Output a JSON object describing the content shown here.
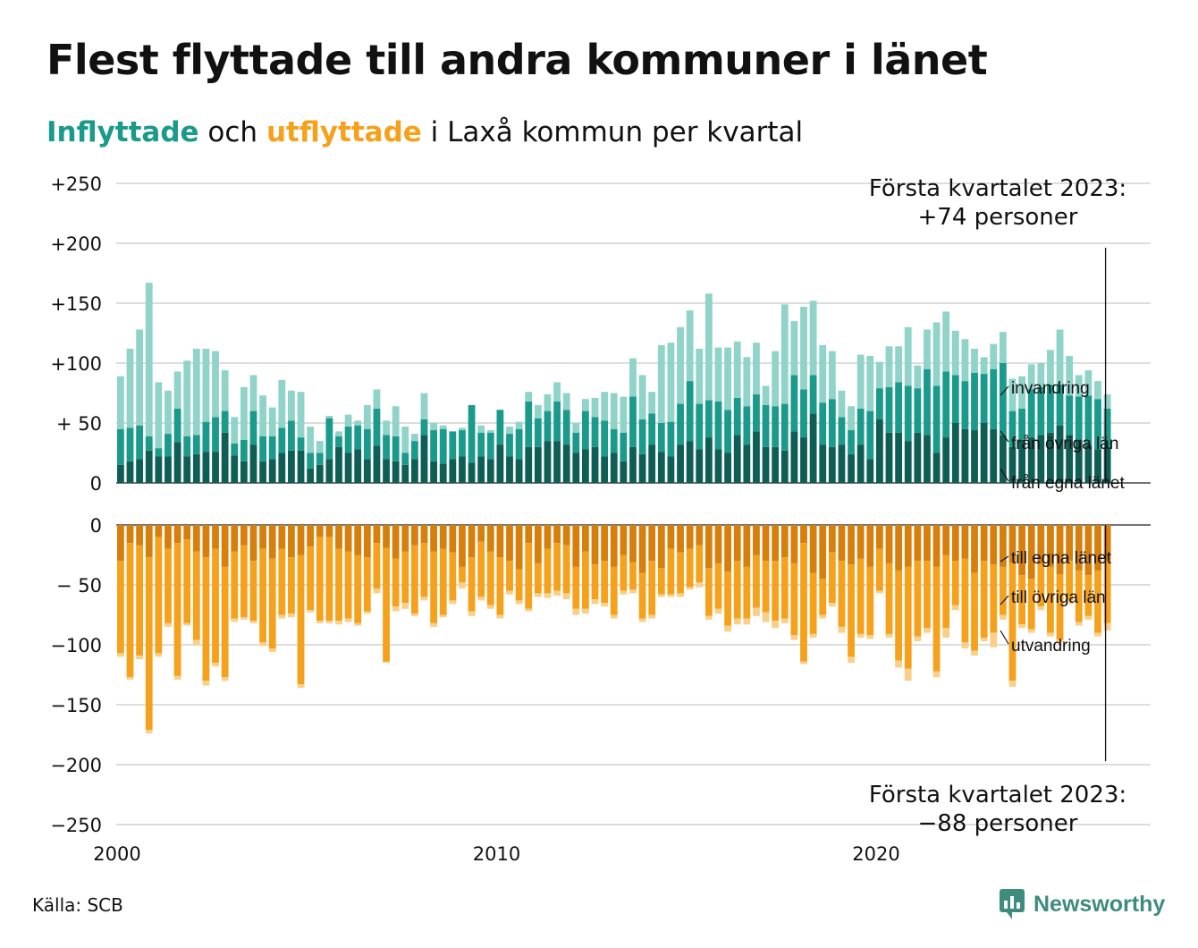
{
  "title": "Flest flyttade till andra kommuner i länet",
  "subtitle": {
    "part1": "Inflyttade",
    "part2": " och ",
    "part3": "utflyttade",
    "part4": " i Laxå kommun per kvartal"
  },
  "source": "Källa: SCB",
  "brand": {
    "name": "Newsworthy",
    "icon": "newsworthy-logo-icon"
  },
  "colors": {
    "in_egna": "#0f5e56",
    "in_ovriga": "#1a9a8b",
    "in_invandring": "#8fd3c9",
    "out_egna": "#d67f0c",
    "out_ovriga": "#f5a11c",
    "out_utvandring": "#f9d08a",
    "grid": "#dddddd"
  },
  "annotations": {
    "top": [
      "Första kvartalet 2023:",
      "+74 personer"
    ],
    "bottom": [
      "Första kvartalet 2023:",
      "−88 personer"
    ]
  },
  "segment_labels": {
    "in": [
      "invandring",
      "från övriga län",
      "från egna länet"
    ],
    "out": [
      "till egna länet",
      "till övriga län",
      "utvandring"
    ]
  },
  "chart_data": {
    "type": "bar",
    "stacked": true,
    "x_ticks": [
      "2000",
      "2010",
      "2020"
    ],
    "x_tick_values": [
      2000,
      2010,
      2020
    ],
    "x_start": 2000,
    "x_step": 0.25,
    "top_y_ticks": [
      {
        "value": 250,
        "label": "+250"
      },
      {
        "value": 200,
        "label": "+200"
      },
      {
        "value": 150,
        "label": "+150"
      },
      {
        "value": 100,
        "label": "+100"
      },
      {
        "value": 50,
        "label": "+ 50"
      },
      {
        "value": 0,
        "label": "0"
      }
    ],
    "bottom_y_ticks": [
      {
        "value": 0,
        "label": "0"
      },
      {
        "value": -50,
        "label": "− 50"
      },
      {
        "value": -100,
        "label": "−100"
      },
      {
        "value": -150,
        "label": "−150"
      },
      {
        "value": -200,
        "label": "−200"
      },
      {
        "value": -250,
        "label": "−250"
      }
    ],
    "top_ylim": [
      0,
      250
    ],
    "bottom_ylim": [
      -250,
      0
    ],
    "inflyttade": {
      "series_names": [
        "från egna länet",
        "från övriga län",
        "invandring"
      ],
      "egna": [
        15,
        18,
        20,
        27,
        22,
        22,
        34,
        22,
        24,
        26,
        26,
        42,
        23,
        18,
        32,
        18,
        20,
        25,
        27,
        27,
        12,
        15,
        20,
        30,
        25,
        28,
        20,
        31,
        20,
        18,
        15,
        20,
        40,
        18,
        16,
        20,
        22,
        17,
        22,
        20,
        32,
        22,
        20,
        30,
        30,
        35,
        35,
        32,
        25,
        28,
        30,
        22,
        25,
        18,
        30,
        24,
        32,
        26,
        22,
        32,
        35,
        28,
        38,
        28,
        25,
        40,
        32,
        43,
        30,
        30,
        27,
        43,
        38,
        58,
        32,
        30,
        32,
        24,
        32,
        20,
        53,
        42,
        42,
        35,
        42,
        40,
        25,
        38,
        50,
        45,
        44,
        50,
        45,
        40,
        30,
        36,
        38,
        40,
        42,
        48,
        40,
        36,
        32,
        28,
        30
      ],
      "ovriga": [
        30,
        28,
        28,
        12,
        7,
        19,
        28,
        17,
        16,
        25,
        29,
        18,
        10,
        18,
        28,
        21,
        19,
        21,
        25,
        11,
        13,
        10,
        34,
        9,
        22,
        20,
        25,
        31,
        20,
        21,
        10,
        15,
        13,
        26,
        29,
        23,
        22,
        48,
        20,
        22,
        29,
        19,
        25,
        38,
        24,
        25,
        33,
        29,
        17,
        32,
        25,
        30,
        20,
        24,
        42,
        29,
        26,
        24,
        29,
        34,
        50,
        38,
        31,
        40,
        36,
        31,
        32,
        31,
        35,
        34,
        39,
        47,
        40,
        32,
        35,
        40,
        23,
        20,
        30,
        40,
        26,
        38,
        42,
        46,
        37,
        55,
        56,
        55,
        40,
        40,
        48,
        41,
        50,
        60,
        30,
        26,
        40,
        40,
        40,
        34,
        33,
        36,
        41,
        42,
        32
      ],
      "invandring": [
        44,
        66,
        80,
        128,
        55,
        36,
        31,
        63,
        72,
        61,
        55,
        34,
        22,
        44,
        30,
        34,
        24,
        40,
        25,
        38,
        22,
        10,
        2,
        4,
        10,
        4,
        20,
        16,
        12,
        25,
        22,
        6,
        22,
        6,
        3,
        0,
        2,
        0,
        6,
        2,
        0,
        6,
        6,
        8,
        11,
        14,
        16,
        14,
        8,
        10,
        16,
        24,
        30,
        30,
        32,
        37,
        18,
        65,
        66,
        64,
        59,
        46,
        89,
        45,
        52,
        47,
        41,
        43,
        16,
        46,
        83,
        45,
        69,
        62,
        48,
        40,
        22,
        20,
        45,
        46,
        22,
        34,
        30,
        49,
        19,
        33,
        53,
        50,
        37,
        35,
        20,
        14,
        21,
        26,
        27,
        27,
        21,
        20,
        29,
        46,
        33,
        18,
        21,
        15,
        12
      ]
    },
    "utflyttade": {
      "series_names": [
        "till egna länet",
        "till övriga län",
        "utvandring"
      ],
      "egna": [
        -30,
        -15,
        -17,
        -27,
        -10,
        -20,
        -15,
        -12,
        -22,
        -27,
        -20,
        -35,
        -22,
        -17,
        -30,
        -20,
        -28,
        -20,
        -27,
        -25,
        -18,
        -10,
        -10,
        -20,
        -22,
        -25,
        -27,
        -15,
        -19,
        -28,
        -22,
        -17,
        -15,
        -22,
        -20,
        -23,
        -35,
        -27,
        -14,
        -22,
        -27,
        -30,
        -37,
        -15,
        -32,
        -20,
        -15,
        -17,
        -35,
        -22,
        -33,
        -30,
        -35,
        -25,
        -31,
        -40,
        -30,
        -36,
        -20,
        -23,
        -20,
        -17,
        -36,
        -32,
        -39,
        -30,
        -35,
        -25,
        -30,
        -30,
        -27,
        -32,
        -15,
        -40,
        -45,
        -23,
        -30,
        -33,
        -28,
        -35,
        -20,
        -32,
        -38,
        -35,
        -30,
        -30,
        -35,
        -25,
        -30,
        -28,
        -40,
        -30,
        -33,
        -35,
        -32,
        -42,
        -45,
        -33,
        -35,
        -41,
        -30,
        -38,
        -42,
        -38,
        -30
      ],
      "ovriga": [
        -77,
        -112,
        -92,
        -144,
        -97,
        -62,
        -111,
        -70,
        -74,
        -103,
        -95,
        -92,
        -56,
        -60,
        -50,
        -78,
        -75,
        -55,
        -47,
        -108,
        -53,
        -70,
        -70,
        -60,
        -56,
        -57,
        -45,
        -38,
        -95,
        -40,
        -43,
        -57,
        -45,
        -60,
        -55,
        -40,
        -13,
        -45,
        -46,
        -45,
        -48,
        -25,
        -26,
        -55,
        -25,
        -37,
        -40,
        -40,
        -35,
        -48,
        -29,
        -35,
        -40,
        -30,
        -23,
        -38,
        -45,
        -22,
        -38,
        -34,
        -32,
        -31,
        -40,
        -38,
        -45,
        -48,
        -43,
        -44,
        -43,
        -50,
        -51,
        -60,
        -99,
        -51,
        -30,
        -42,
        -55,
        -77,
        -63,
        -57,
        -35,
        -59,
        -75,
        -85,
        -63,
        -56,
        -87,
        -61,
        -37,
        -70,
        -65,
        -64,
        -57,
        -40,
        -98,
        -41,
        -42,
        -35,
        -55,
        -55,
        -33,
        -43,
        -34,
        -52,
        -52
      ],
      "utvandring": [
        -3,
        -2,
        -3,
        -3,
        -3,
        -3,
        -3,
        -2,
        -4,
        -4,
        -3,
        -3,
        -3,
        -2,
        -2,
        -3,
        -3,
        -3,
        -3,
        -3,
        -2,
        -2,
        -2,
        -3,
        -3,
        -2,
        -2,
        -4,
        -1,
        -4,
        -5,
        -2,
        -3,
        -3,
        -2,
        -3,
        -5,
        -4,
        -3,
        -3,
        -3,
        -3,
        -3,
        -2,
        -3,
        -4,
        -4,
        -5,
        -5,
        -4,
        -4,
        -3,
        -3,
        -3,
        -3,
        -3,
        -3,
        -2,
        -2,
        -3,
        -2,
        -4,
        -3,
        -4,
        -5,
        -5,
        -5,
        -7,
        -8,
        -6,
        -4,
        -4,
        -2,
        -3,
        -3,
        -3,
        -5,
        -5,
        -3,
        -3,
        -2,
        -3,
        -6,
        -10,
        -4,
        -4,
        -5,
        -8,
        -4,
        -5,
        -4,
        -3,
        -12,
        -4,
        -5,
        -3,
        -3,
        -3,
        -3,
        -2,
        -3,
        -3,
        -3,
        -3,
        -6
      ]
    },
    "highlight": {
      "x_label": "Första kvartalet 2023",
      "in_total": 74,
      "out_total": -88
    }
  }
}
